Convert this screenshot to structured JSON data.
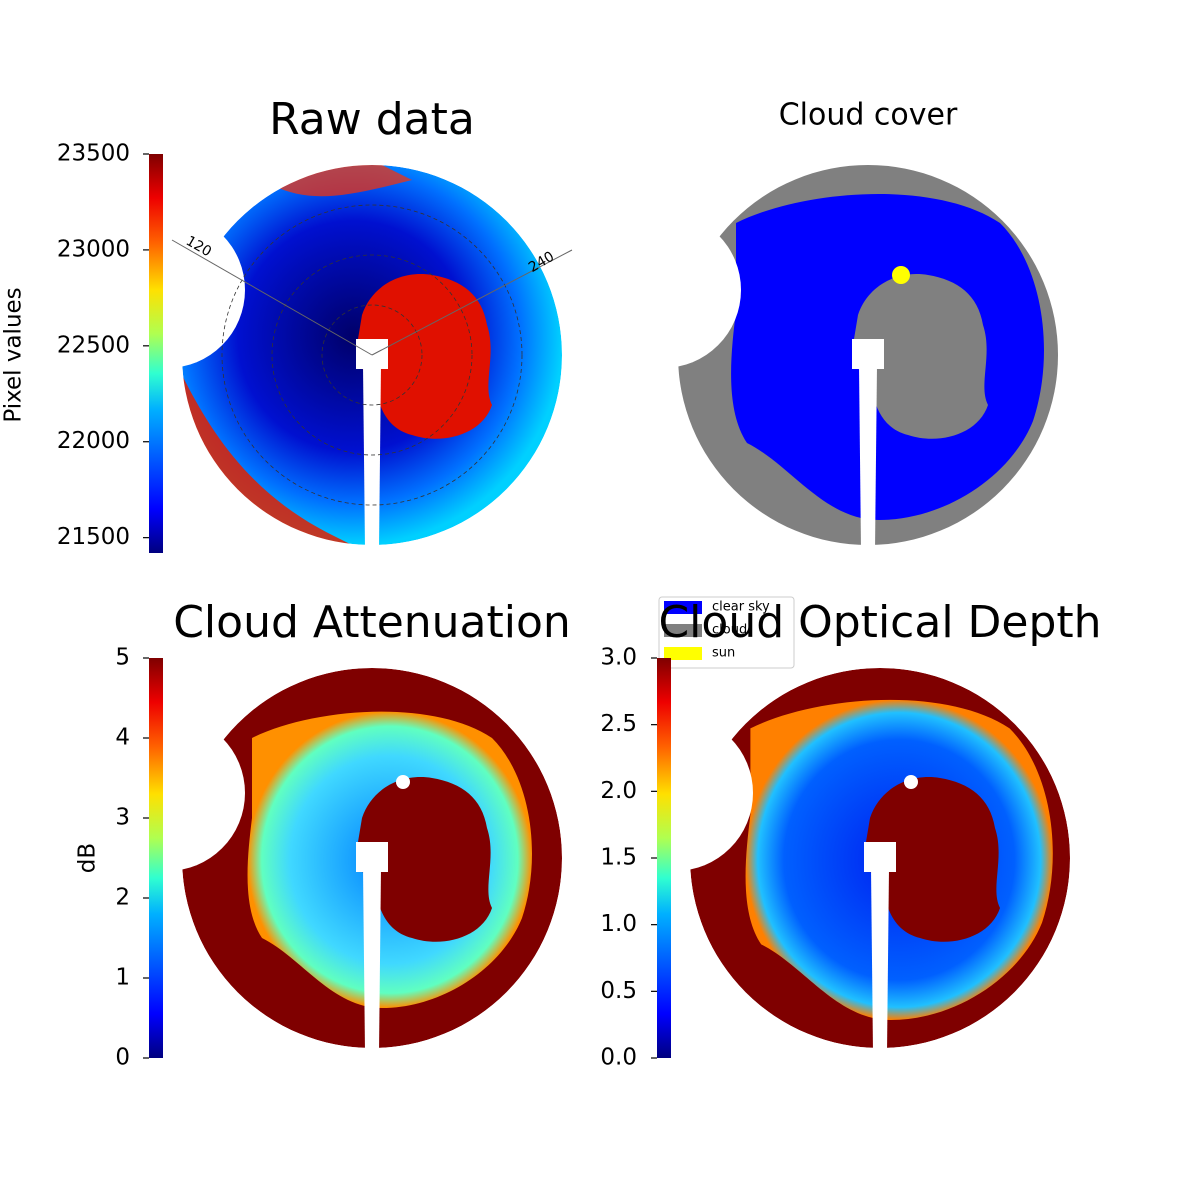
{
  "chart_data": [
    {
      "type": "image",
      "title": "Raw data",
      "colorbar_label": "Pixel values",
      "cmap": "jet",
      "clim": [
        21420,
        23500
      ],
      "cticks": [
        21500,
        22000,
        22500,
        23000,
        23500
      ],
      "annotations": [
        "120",
        "240"
      ]
    },
    {
      "type": "image",
      "title": "Cloud cover",
      "legend": [
        {
          "name": "clear sky",
          "color": "#0000ff"
        },
        {
          "name": "cloud",
          "color": "#808080"
        },
        {
          "name": "sun",
          "color": "#ffff00"
        }
      ]
    },
    {
      "type": "image",
      "title": "Cloud Attenuation",
      "colorbar_label": "dB",
      "cmap": "jet",
      "clim": [
        0,
        5
      ],
      "cticks": [
        0,
        1,
        2,
        3,
        4,
        5
      ]
    },
    {
      "type": "image",
      "title": "Cloud Optical Depth",
      "cmap": "jet",
      "clim": [
        0,
        3
      ],
      "cticks": [
        {
          "value": 0,
          "label": "0.0"
        },
        0.5,
        {
          "value": 1,
          "label": "1.0"
        },
        1.5,
        {
          "value": 2,
          "label": "2.0"
        },
        2.5,
        {
          "value": 3,
          "label": "3.0"
        }
      ]
    }
  ]
}
